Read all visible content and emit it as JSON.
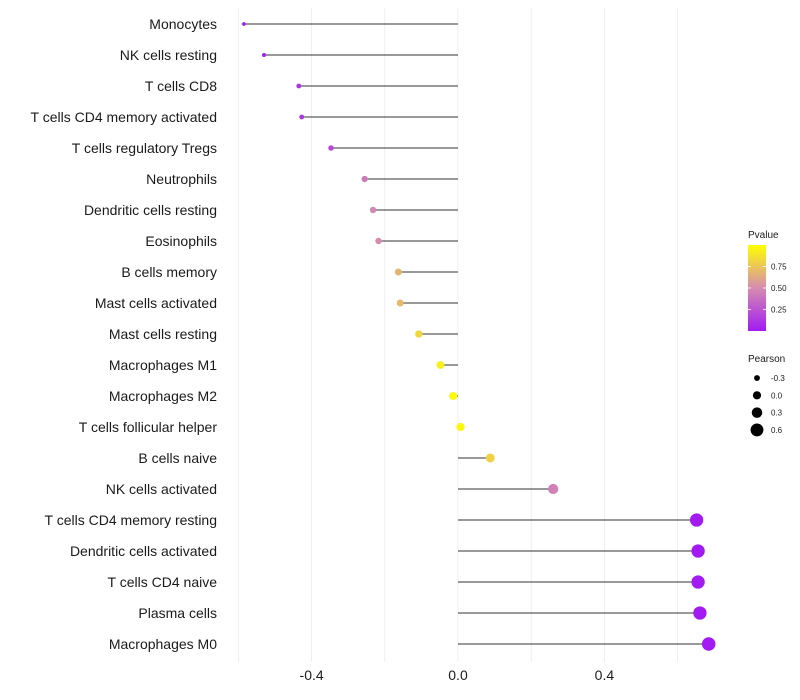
{
  "chart_data": {
    "type": "lollipop",
    "title": "",
    "xlabel": "",
    "ylabel": "",
    "xlim": [
      -0.6,
      0.73
    ],
    "x_ticks": [
      -0.4,
      0.0,
      0.4
    ],
    "x_tick_labels": [
      "-0.4",
      "0.0",
      "0.4"
    ],
    "categories": [
      "Monocytes",
      "NK cells resting",
      "T cells CD8",
      "T cells CD4 memory activated",
      "T cells regulatory  Tregs ",
      "Neutrophils",
      "Dendritic cells resting",
      "Eosinophils",
      "B cells memory",
      "Mast cells activated",
      "Mast cells resting",
      "Macrophages M1",
      "Macrophages M2",
      "T cells follicular helper",
      "B cells naive",
      "NK cells activated",
      "T cells CD4 memory resting",
      "Dendritic cells activated",
      "T cells CD4 naive",
      "Plasma cells",
      "Macrophages M0"
    ],
    "pearson": [
      -0.585,
      -0.53,
      -0.435,
      -0.427,
      -0.347,
      -0.255,
      -0.232,
      -0.217,
      -0.163,
      -0.158,
      -0.107,
      -0.048,
      -0.013,
      0.007,
      0.088,
      0.26,
      0.652,
      0.656,
      0.656,
      0.661,
      0.685
    ],
    "pvalue": [
      0.005,
      0.02,
      0.1,
      0.12,
      0.2,
      0.42,
      0.48,
      0.5,
      0.68,
      0.7,
      0.82,
      0.93,
      0.98,
      0.97,
      0.8,
      0.45,
      0.001,
      0.001,
      0.001,
      0.001,
      0.001
    ],
    "legend_pvalue": {
      "title": "Pvalue",
      "ticks": [
        0.75,
        0.5,
        0.25
      ],
      "tick_labels": [
        "0.75",
        "0.50",
        "0.25"
      ],
      "range": [
        0.0,
        1.0
      ],
      "low_color": "#a21bf2",
      "mid_color": "#d58cb0",
      "high_color": "#ffff00",
      "placement": "right"
    },
    "legend_pearson": {
      "title": "Pearson",
      "values": [
        -0.3,
        0.0,
        0.3,
        0.6
      ],
      "labels": [
        "-0.3",
        "0.0",
        "0.3",
        "0.6"
      ],
      "placement": "right"
    }
  }
}
